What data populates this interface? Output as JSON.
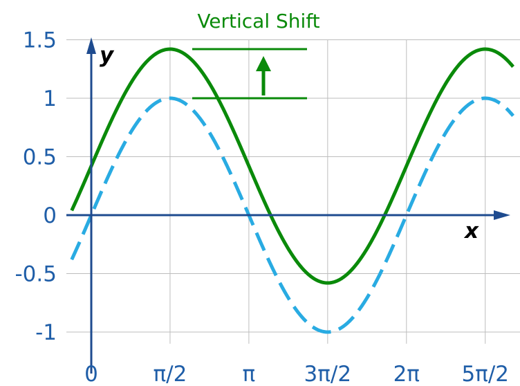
{
  "chart_data": {
    "type": "line",
    "title": "",
    "xlabel": "x",
    "ylabel": "y",
    "annotation": "Vertical Shift",
    "shift": 0.42,
    "x_ticks": [
      {
        "value": 0,
        "label": "0"
      },
      {
        "value": 1.5708,
        "label": "π/2"
      },
      {
        "value": 3.1416,
        "label": "π"
      },
      {
        "value": 4.7124,
        "label": "3π/2"
      },
      {
        "value": 6.2832,
        "label": "2π"
      },
      {
        "value": 7.854,
        "label": "5π/2"
      }
    ],
    "y_ticks": [
      {
        "value": 1.5,
        "label": "1.5"
      },
      {
        "value": 1,
        "label": "1"
      },
      {
        "value": 0.5,
        "label": "0.5"
      },
      {
        "value": 0,
        "label": "0"
      },
      {
        "value": -0.5,
        "label": "-0.5"
      },
      {
        "value": -1,
        "label": "-1"
      }
    ],
    "xlim": [
      -0.39,
      8.41
    ],
    "ylim": [
      -1.1,
      1.5
    ],
    "grid": true,
    "series": [
      {
        "function": "sin(x)",
        "color": "#29abe2",
        "style": "dashed",
        "x": [
          -0.39,
          0,
          0.7854,
          1.5708,
          2.3562,
          3.1416,
          3.927,
          4.7124,
          5.4978,
          6.2832,
          7.0686,
          7.854,
          8.41
        ],
        "y": [
          -0.38,
          0,
          0.71,
          1,
          0.71,
          0,
          -0.71,
          -1,
          -0.71,
          0,
          0.71,
          1,
          0.85
        ]
      },
      {
        "function": "sin(x) + 0.42",
        "color": "#0a8a0a",
        "style": "solid",
        "x": [
          -0.39,
          0,
          0.7854,
          1.5708,
          2.3562,
          3.1416,
          3.927,
          4.7124,
          5.4978,
          6.2832,
          7.0686,
          7.854,
          8.41
        ],
        "y": [
          0.04,
          0.42,
          1.13,
          1.42,
          1.13,
          0.42,
          -0.29,
          -0.58,
          -0.29,
          0.42,
          1.13,
          1.42,
          1.27
        ]
      }
    ],
    "colors": {
      "axis": "#1e4b8f",
      "grid": "#bdbdbd",
      "tick_text": "#1f5ea8",
      "annotation": "#0a8a0a"
    }
  }
}
